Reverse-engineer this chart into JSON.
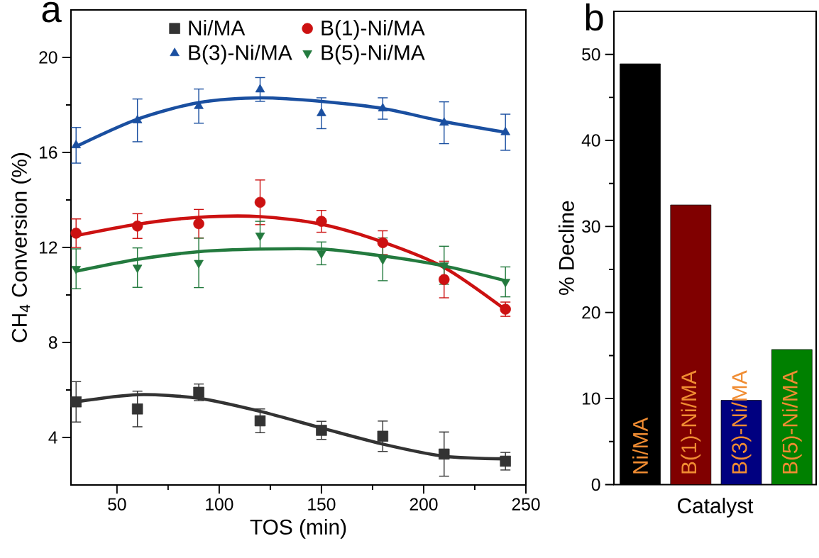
{
  "chart_data": [
    {
      "type": "scatter",
      "title": "a",
      "xlabel": "TOS (min)",
      "ylabel": "CH$_{4}$ Conversion (%)",
      "xlim": [
        27.5,
        250
      ],
      "xticks": [
        50,
        100,
        150,
        200,
        250
      ],
      "ylim": [
        2,
        22
      ],
      "yticks": [
        4,
        8,
        12,
        16,
        20
      ],
      "legend": "top",
      "grid": false,
      "series": [
        {
          "name": "Ni/MA",
          "type": "scatter",
          "marker": "square",
          "color": "#333333",
          "x": [
            30,
            60,
            90,
            120,
            150,
            180,
            210,
            240
          ],
          "values": [
            5.5,
            5.2,
            5.9,
            4.7,
            4.3,
            4.05,
            3.3,
            3.0
          ],
          "errors": [
            0.85,
            0.75,
            0.35,
            0.5,
            0.38,
            0.64,
            0.93,
            0.37
          ]
        },
        {
          "name": "B(1)-Ni/MA",
          "type": "scatter",
          "marker": "circle",
          "color": "#cc1111",
          "x": [
            30,
            60,
            90,
            120,
            150,
            180,
            210,
            240
          ],
          "values": [
            12.6,
            12.9,
            13.0,
            13.9,
            13.1,
            12.2,
            10.65,
            9.4
          ],
          "errors": [
            0.6,
            0.52,
            0.6,
            0.94,
            0.46,
            0.5,
            0.77,
            0.3
          ]
        },
        {
          "name": "B(3)-Ni/MA",
          "type": "scatter",
          "marker": "triangle",
          "color": "#1a4fa0",
          "x": [
            30,
            60,
            90,
            120,
            150,
            180,
            210,
            240
          ],
          "values": [
            16.3,
            17.35,
            17.95,
            18.65,
            17.65,
            17.85,
            17.25,
            16.85
          ],
          "errors": [
            0.75,
            0.9,
            0.72,
            0.5,
            0.65,
            0.45,
            0.88,
            0.76
          ]
        },
        {
          "name": "B(5)-Ni/MA",
          "type": "scatter",
          "marker": "triangle-down",
          "color": "#237a3e",
          "x": [
            30,
            60,
            90,
            120,
            150,
            180,
            210,
            240
          ],
          "values": [
            11.1,
            11.15,
            11.35,
            12.5,
            11.75,
            11.5,
            11.25,
            10.55
          ],
          "errors": [
            0.84,
            0.83,
            1.04,
            0.6,
            0.48,
            0.9,
            0.8,
            0.63
          ]
        },
        {
          "type": "line",
          "marker": "none",
          "color": "#333333",
          "x": [
            30,
            60,
            90,
            120,
            150,
            180,
            210,
            240
          ],
          "values": [
            5.5,
            5.8,
            5.65,
            5.1,
            4.4,
            3.72,
            3.21,
            3.1
          ]
        },
        {
          "type": "line",
          "marker": "none",
          "color": "#cc1111",
          "x": [
            30,
            60,
            90,
            120,
            150,
            180,
            210,
            240
          ],
          "values": [
            12.5,
            12.98,
            13.27,
            13.3,
            12.98,
            12.23,
            11.16,
            9.38
          ]
        },
        {
          "type": "line",
          "marker": "none",
          "color": "#1a4fa0",
          "x": [
            30,
            60,
            90,
            120,
            150,
            180,
            210,
            240
          ],
          "values": [
            16.25,
            17.4,
            18.1,
            18.3,
            18.15,
            17.85,
            17.3,
            16.85
          ]
        },
        {
          "type": "line",
          "marker": "none",
          "color": "#237a3e",
          "x": [
            30,
            60,
            90,
            120,
            150,
            180,
            210,
            240
          ],
          "values": [
            11.0,
            11.5,
            11.82,
            11.93,
            11.93,
            11.64,
            11.22,
            10.6
          ]
        }
      ]
    },
    {
      "type": "bar",
      "title": "b",
      "xlabel": "Catalyst",
      "ylabel": "% Decline",
      "categories": [
        "Ni/MA",
        "B(1)-Ni/MA",
        "B(3)-Ni/MA",
        "B(5)-Ni/MA"
      ],
      "values": [
        48.9,
        32.5,
        9.8,
        15.7
      ],
      "colors": [
        "#000000",
        "#800000",
        "#000080",
        "#008000"
      ],
      "ylim": [
        0,
        55
      ],
      "yticks": [
        0,
        10,
        20,
        30,
        40,
        50
      ],
      "grid": false,
      "legend": false
    }
  ]
}
